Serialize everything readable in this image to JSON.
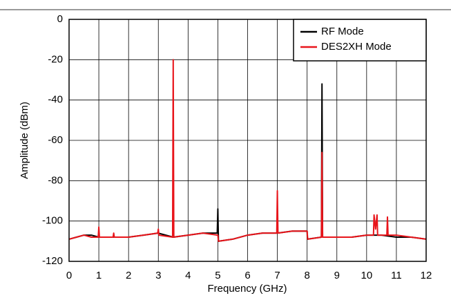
{
  "chart_data": {
    "type": "line",
    "xlabel": "Frequency (GHz)",
    "ylabel": "Amplitude (dBm)",
    "xlim": [
      0,
      12
    ],
    "ylim": [
      -120,
      0
    ],
    "xticks": [
      0,
      1,
      2,
      3,
      4,
      5,
      6,
      7,
      8,
      9,
      10,
      11,
      12
    ],
    "yticks": [
      0,
      -20,
      -40,
      -60,
      -80,
      -100,
      -120
    ],
    "grid": true,
    "legend": "upper right",
    "series": [
      {
        "name": "RF Mode",
        "color": "#000000",
        "x": [
          0,
          0.25,
          0.5,
          0.75,
          1,
          1.5,
          2,
          2.5,
          3,
          3.5,
          4,
          4.5,
          4.98,
          5,
          5.02,
          5.5,
          6,
          6.5,
          7,
          7.5,
          8,
          8.01,
          8.48,
          8.5,
          8.52,
          9,
          9.5,
          10,
          10.5,
          11,
          11.5,
          12
        ],
        "values": [
          -109,
          -108,
          -107,
          -107,
          -108,
          -108,
          -108,
          -107,
          -106,
          -108,
          -107,
          -106,
          -106,
          -94,
          -110,
          -109,
          -107,
          -106,
          -106,
          -105,
          -105,
          -109,
          -108,
          -32,
          -108,
          -108,
          -108,
          -107,
          -107,
          -108,
          -108,
          -109
        ]
      },
      {
        "name": "DES2XH Mode",
        "color": "#e8141a",
        "x": [
          0,
          0.25,
          0.5,
          0.75,
          0.98,
          1,
          1.02,
          1.48,
          1.5,
          1.52,
          2,
          2.5,
          2.98,
          3,
          3.02,
          3.48,
          3.5,
          3.52,
          4,
          4.5,
          5,
          5.02,
          5.5,
          6,
          6.5,
          6.98,
          7,
          7.02,
          7.5,
          8,
          8.02,
          8.48,
          8.5,
          8.52,
          9,
          9.5,
          10,
          10.23,
          10.25,
          10.3,
          10.35,
          10.37,
          10.68,
          10.7,
          10.72,
          11,
          11.5,
          12
        ],
        "values": [
          -109,
          -108,
          -107,
          -108,
          -108,
          -103,
          -108,
          -108,
          -106,
          -108,
          -108,
          -107,
          -106,
          -104,
          -107,
          -108,
          -20,
          -108,
          -107,
          -106,
          -107,
          -110,
          -109,
          -107,
          -106,
          -106,
          -85,
          -106,
          -105,
          -105,
          -109,
          -108,
          -66,
          -108,
          -108,
          -108,
          -107,
          -107,
          -97,
          -104,
          -97,
          -107,
          -107,
          -98,
          -107,
          -107,
          -108,
          -109
        ]
      }
    ]
  }
}
